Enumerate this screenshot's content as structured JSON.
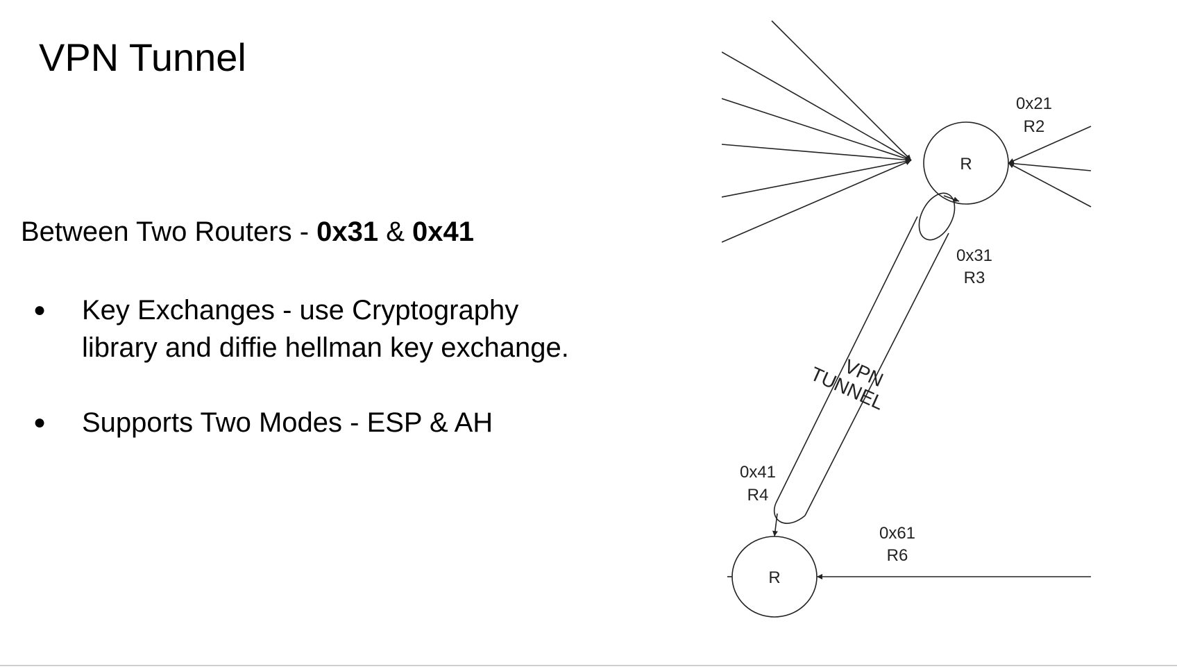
{
  "slide": {
    "title": "VPN Tunnel",
    "subtitle_prefix": "Between Two Routers - ",
    "subtitle_bold_1": "0x31",
    "subtitle_mid": " & ",
    "subtitle_bold_2": "0x41",
    "bullet_symbol": "●",
    "bullets": [
      {
        "line1": "Key Exchanges - use Cryptography",
        "line2": "library and diffie hellman key exchange."
      },
      {
        "line1": "Supports Two Modes - ESP & AH",
        "line2": ""
      }
    ]
  },
  "diagram": {
    "router_top": {
      "symbol": "R"
    },
    "router_bottom": {
      "symbol": "R"
    },
    "labels": {
      "r2_addr": "0x21",
      "r2_name": "R2",
      "r3_addr": "0x31",
      "r3_name": "R3",
      "r4_addr": "0x41",
      "r4_name": "R4",
      "r6_addr": "0x61",
      "r6_name": "R6",
      "tunnel_line1": "VPN",
      "tunnel_line2": "TUNNEL"
    },
    "stroke_color": "#222222"
  }
}
